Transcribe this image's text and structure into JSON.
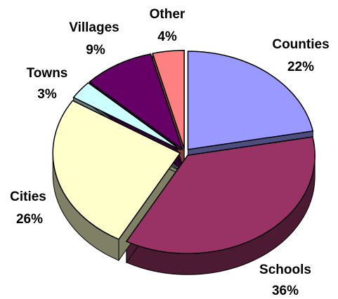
{
  "chart_data": {
    "type": "pie",
    "title": "",
    "slices": [
      {
        "label": "Counties",
        "value": 22,
        "value_label": "22%",
        "color": "#9999FF",
        "side_color": "#4d4d80"
      },
      {
        "label": "Schools",
        "value": 36,
        "value_label": "36%",
        "color": "#993366",
        "side_color": "#4d1a33"
      },
      {
        "label": "Cities",
        "value": 26,
        "value_label": "26%",
        "color": "#FFFFCC",
        "side_color": "#808066"
      },
      {
        "label": "Towns",
        "value": 3,
        "value_label": "3%",
        "color": "#CCFFFF",
        "side_color": "#668080"
      },
      {
        "label": "Villages",
        "value": 9,
        "value_label": "9%",
        "color": "#660066",
        "side_color": "#330033"
      },
      {
        "label": "Other",
        "value": 4,
        "value_label": "4%",
        "color": "#FF8080",
        "side_color": "#804040"
      }
    ],
    "exploded": true,
    "three_d": true,
    "legend": "none"
  }
}
